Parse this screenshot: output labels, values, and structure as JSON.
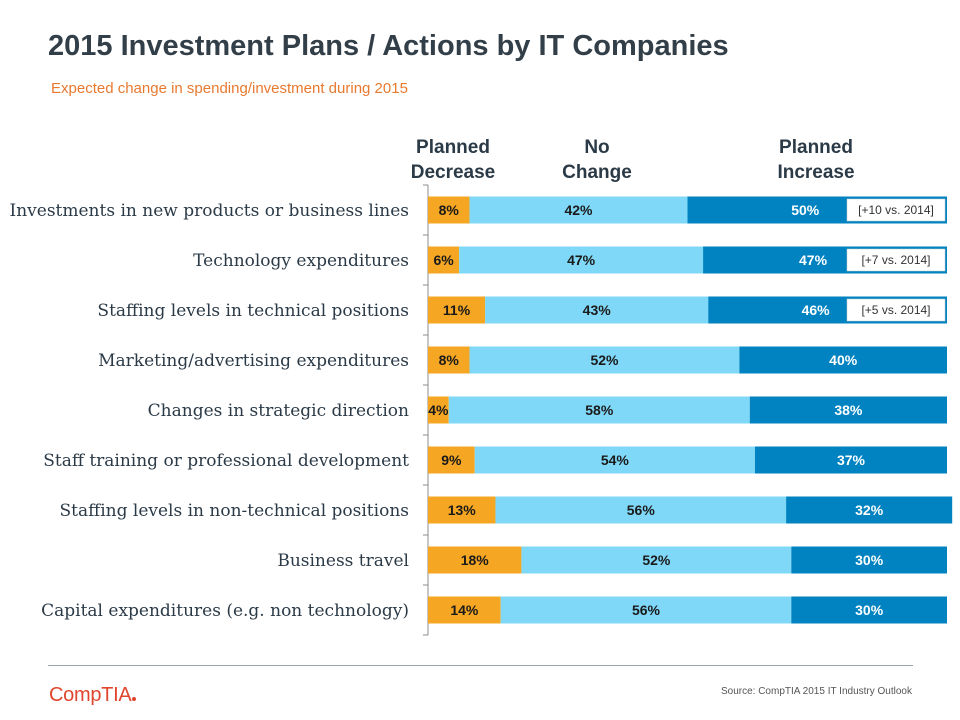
{
  "title": "2015 Investment Plans / Actions by IT Companies",
  "subtitle": "Expected change in spending/investment during 2015",
  "column_headers": {
    "decrease": [
      "Planned",
      "Decrease"
    ],
    "no_change": [
      "No",
      "Change"
    ],
    "increase": [
      "Planned",
      "Increase"
    ]
  },
  "colors": {
    "decrease": "#f5a623",
    "no_change": "#7fd8f7",
    "increase": "#0083c0"
  },
  "chart_data": {
    "type": "bar",
    "orientation": "horizontal",
    "stacked": true,
    "unit": "%",
    "xlim": [
      0,
      100
    ],
    "categories": [
      "Investments in new products or business lines",
      "Technology expenditures",
      "Staffing levels in technical positions",
      "Marketing/advertising expenditures",
      "Changes in strategic direction",
      "Staff training or professional development",
      "Staffing levels in non-technical positions",
      "Business travel",
      "Capital expenditures (e.g. non technology)"
    ],
    "series": [
      {
        "name": "Planned Decrease",
        "values": [
          8,
          6,
          11,
          8,
          4,
          9,
          13,
          18,
          14
        ]
      },
      {
        "name": "No Change",
        "values": [
          42,
          47,
          43,
          52,
          58,
          54,
          56,
          52,
          56
        ]
      },
      {
        "name": "Planned Increase",
        "values": [
          50,
          47,
          46,
          40,
          38,
          37,
          32,
          30,
          30
        ]
      }
    ],
    "annotations": [
      "[+10 vs. 2014]",
      "[+7 vs. 2014]",
      "[+5 vs. 2014]",
      null,
      null,
      null,
      null,
      null,
      null
    ]
  },
  "footer": {
    "logo": "CompTIA",
    "source": "Source: CompTIA 2015 IT Industry Outlook"
  }
}
